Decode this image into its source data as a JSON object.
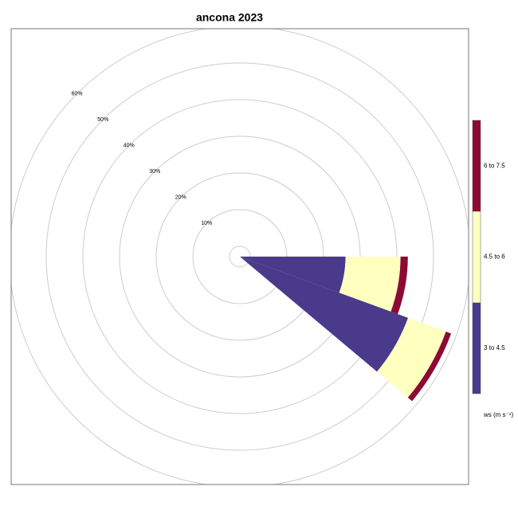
{
  "chart_data": {
    "type": "windrose",
    "title": "ancona 2023",
    "directions": [
      100,
      120
    ],
    "series": [
      {
        "name": "3 to 4.5",
        "color": "#4a3a8c",
        "values": [
          26,
          46
        ]
      },
      {
        "name": "4.5 to 6",
        "color": "#ffffbf",
        "values": [
          15,
          11
        ]
      },
      {
        "name": "6 to 7.5",
        "color": "#8c0a34",
        "values": [
          2,
          1.5
        ]
      }
    ],
    "rticks": [
      {
        "value": 10,
        "label": "10%"
      },
      {
        "value": 20,
        "label": "20%"
      },
      {
        "value": 30,
        "label": "30%"
      },
      {
        "value": 40,
        "label": "40%"
      },
      {
        "value": 50,
        "label": "50%"
      },
      {
        "value": 60,
        "label": "60%"
      }
    ],
    "legend_title": "ws (m s⁻¹)",
    "grid": true
  }
}
